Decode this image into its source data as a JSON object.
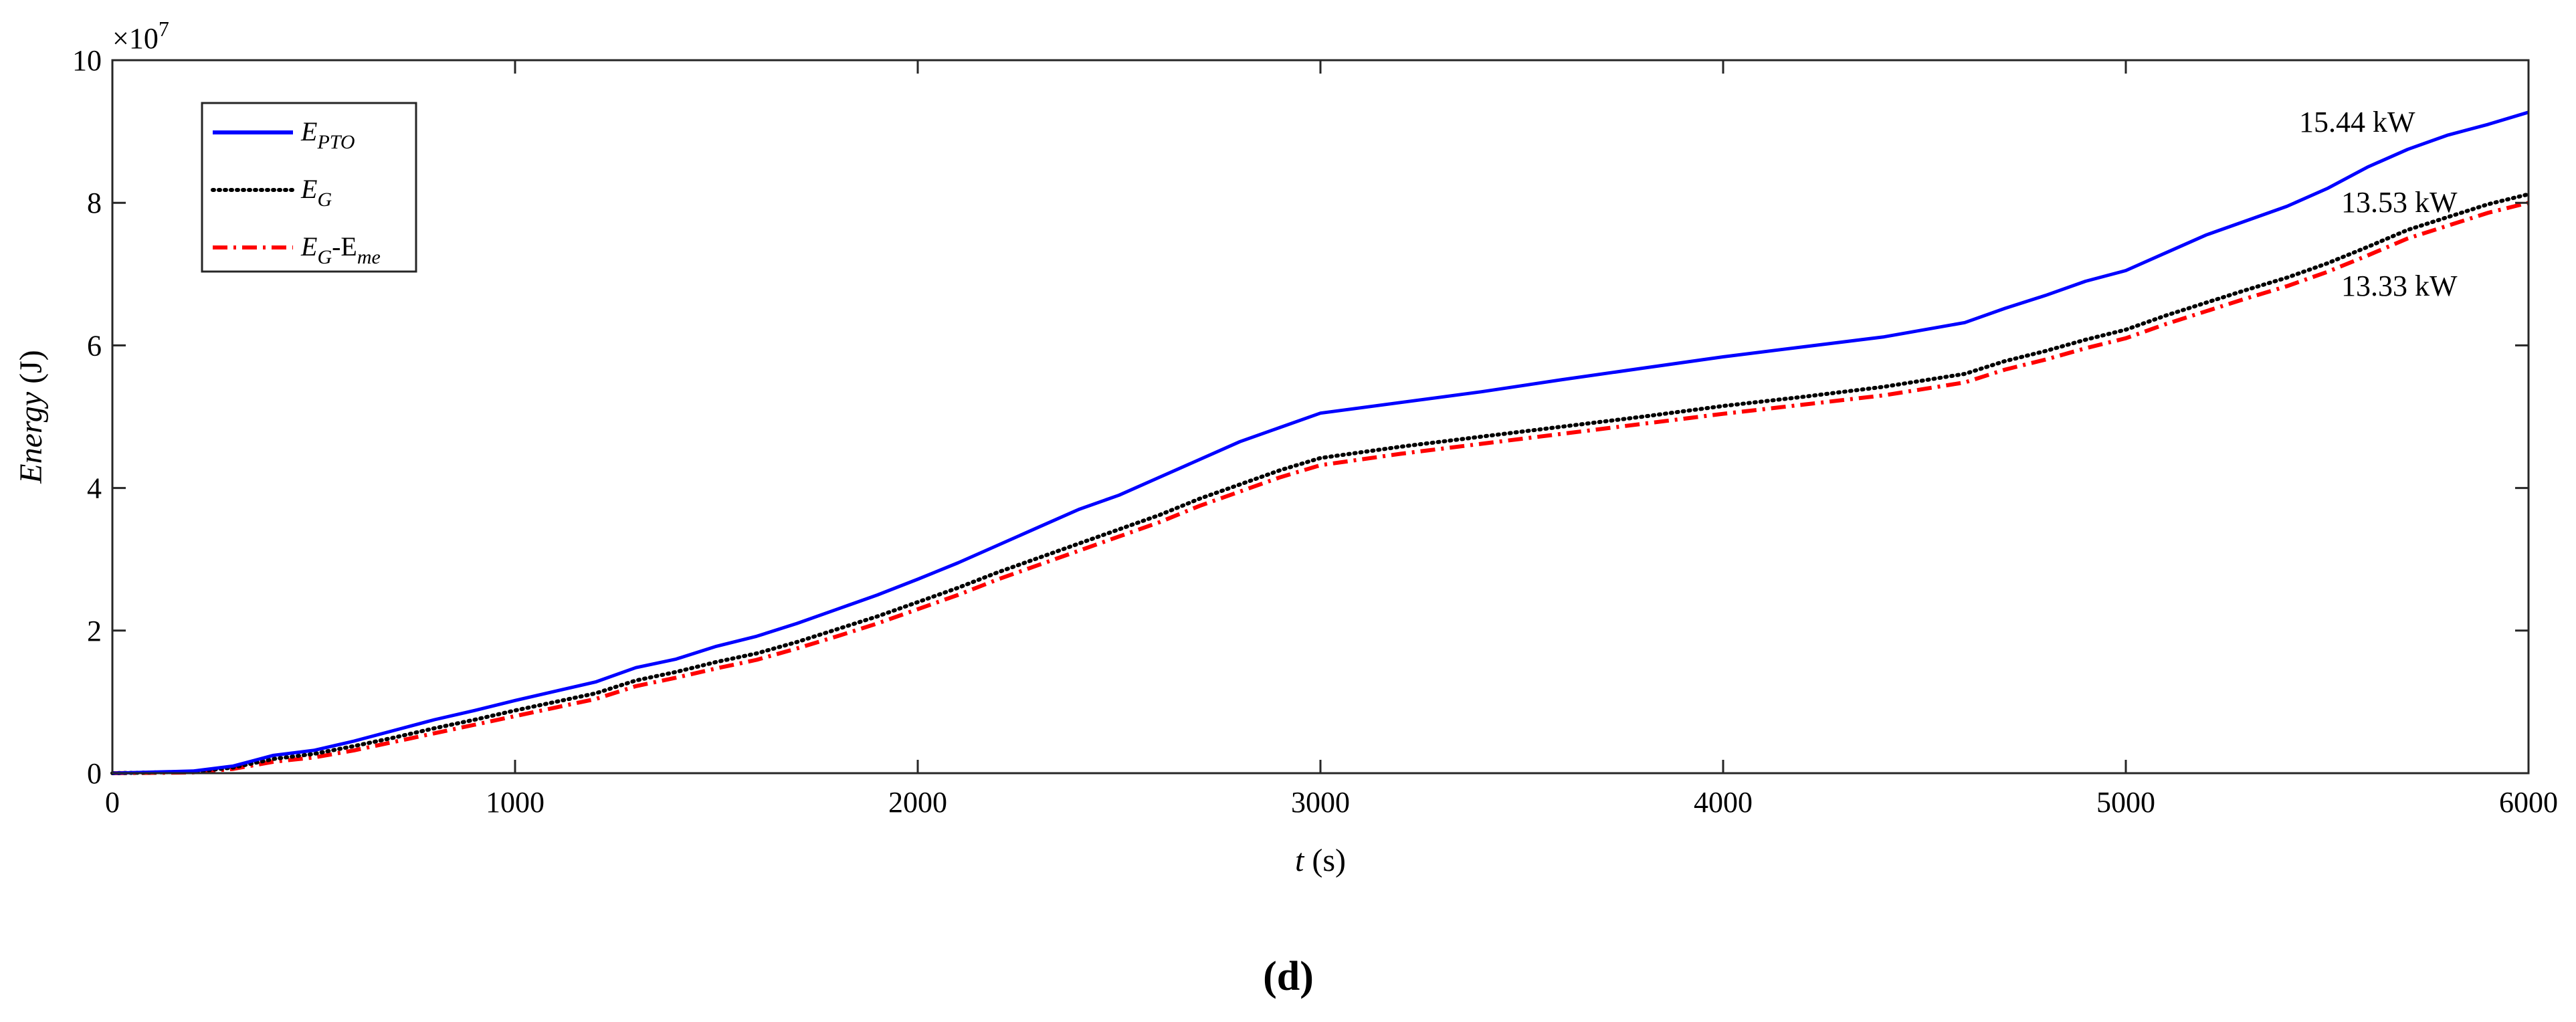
{
  "chart_data": {
    "type": "line",
    "title": "",
    "xlabel_italic": "t",
    "xlabel_rest": " (s)",
    "ylabel_italic": "Energy",
    "ylabel_rest": " (J)",
    "y_multiplier_base": "×10",
    "y_multiplier_exp": "7",
    "xlim": [
      0,
      6000
    ],
    "ylim": [
      0,
      10
    ],
    "y_scale_note": "values in units of 10^7 J",
    "xticks": [
      0,
      1000,
      2000,
      3000,
      4000,
      5000,
      6000
    ],
    "yticks": [
      0,
      2,
      4,
      6,
      8,
      10
    ],
    "grid": false,
    "legend_position": "top-left",
    "series": [
      {
        "name_main": "E",
        "name_sub": "PTO",
        "color": "#0000ff",
        "style": "solid",
        "end_label": "15.44 kW",
        "x": [
          0,
          200,
          300,
          400,
          500,
          600,
          700,
          800,
          900,
          1000,
          1100,
          1200,
          1300,
          1400,
          1500,
          1600,
          1700,
          1800,
          1900,
          2000,
          2100,
          2200,
          2300,
          2400,
          2500,
          2600,
          2700,
          2800,
          2900,
          3000,
          3200,
          3400,
          3600,
          3800,
          4000,
          4200,
          4400,
          4600,
          4700,
          4800,
          4900,
          5000,
          5100,
          5200,
          5300,
          5400,
          5500,
          5600,
          5700,
          5800,
          5900,
          6000
        ],
        "y": [
          0,
          0.03,
          0.1,
          0.25,
          0.32,
          0.45,
          0.6,
          0.75,
          0.88,
          1.02,
          1.15,
          1.28,
          1.48,
          1.6,
          1.78,
          1.92,
          2.1,
          2.3,
          2.5,
          2.72,
          2.95,
          3.2,
          3.45,
          3.7,
          3.9,
          4.15,
          4.4,
          4.65,
          4.85,
          5.05,
          5.2,
          5.35,
          5.52,
          5.68,
          5.84,
          5.98,
          6.12,
          6.32,
          6.52,
          6.7,
          6.9,
          7.05,
          7.3,
          7.55,
          7.75,
          7.95,
          8.2,
          8.5,
          8.75,
          8.95,
          9.1,
          9.27
        ]
      },
      {
        "name_main": "E",
        "name_sub": "G",
        "color": "#000000",
        "style": "dotted",
        "end_label": "13.53 kW",
        "x": [
          0,
          200,
          300,
          400,
          500,
          600,
          700,
          800,
          900,
          1000,
          1100,
          1200,
          1300,
          1400,
          1500,
          1600,
          1700,
          1800,
          1900,
          2000,
          2100,
          2200,
          2300,
          2400,
          2500,
          2600,
          2700,
          2800,
          2900,
          3000,
          3200,
          3400,
          3600,
          3800,
          4000,
          4200,
          4400,
          4600,
          4700,
          4800,
          4900,
          5000,
          5100,
          5200,
          5300,
          5400,
          5500,
          5600,
          5700,
          5800,
          5900,
          6000
        ],
        "y": [
          0,
          0.02,
          0.08,
          0.2,
          0.27,
          0.38,
          0.5,
          0.63,
          0.75,
          0.88,
          1.0,
          1.12,
          1.3,
          1.42,
          1.56,
          1.68,
          1.84,
          2.02,
          2.2,
          2.4,
          2.6,
          2.82,
          3.02,
          3.22,
          3.42,
          3.62,
          3.85,
          4.05,
          4.25,
          4.42,
          4.58,
          4.72,
          4.86,
          5.0,
          5.15,
          5.28,
          5.42,
          5.6,
          5.78,
          5.92,
          6.08,
          6.22,
          6.42,
          6.6,
          6.78,
          6.95,
          7.15,
          7.38,
          7.62,
          7.8,
          7.98,
          8.12
        ]
      },
      {
        "name_main": "E",
        "name_sub": "G",
        "name_mid": "-E",
        "name_sub2": "me",
        "color": "#ff0000",
        "style": "dashdot",
        "end_label": "13.33 kW",
        "x": [
          0,
          200,
          300,
          400,
          500,
          600,
          700,
          800,
          900,
          1000,
          1100,
          1200,
          1300,
          1400,
          1500,
          1600,
          1700,
          1800,
          1900,
          2000,
          2100,
          2200,
          2300,
          2400,
          2500,
          2600,
          2700,
          2800,
          2900,
          3000,
          3200,
          3400,
          3600,
          3800,
          4000,
          4200,
          4400,
          4600,
          4700,
          4800,
          4900,
          5000,
          5100,
          5200,
          5300,
          5400,
          5500,
          5600,
          5700,
          5800,
          5900,
          6000
        ],
        "y": [
          0,
          0.01,
          0.06,
          0.16,
          0.22,
          0.32,
          0.44,
          0.56,
          0.68,
          0.8,
          0.92,
          1.04,
          1.22,
          1.34,
          1.47,
          1.59,
          1.75,
          1.92,
          2.1,
          2.3,
          2.5,
          2.72,
          2.92,
          3.12,
          3.32,
          3.52,
          3.75,
          3.95,
          4.15,
          4.32,
          4.48,
          4.62,
          4.76,
          4.9,
          5.04,
          5.17,
          5.3,
          5.48,
          5.66,
          5.8,
          5.96,
          6.1,
          6.3,
          6.48,
          6.66,
          6.83,
          7.03,
          7.26,
          7.5,
          7.68,
          7.86,
          8.0
        ]
      }
    ],
    "panel_label": "(d)"
  }
}
